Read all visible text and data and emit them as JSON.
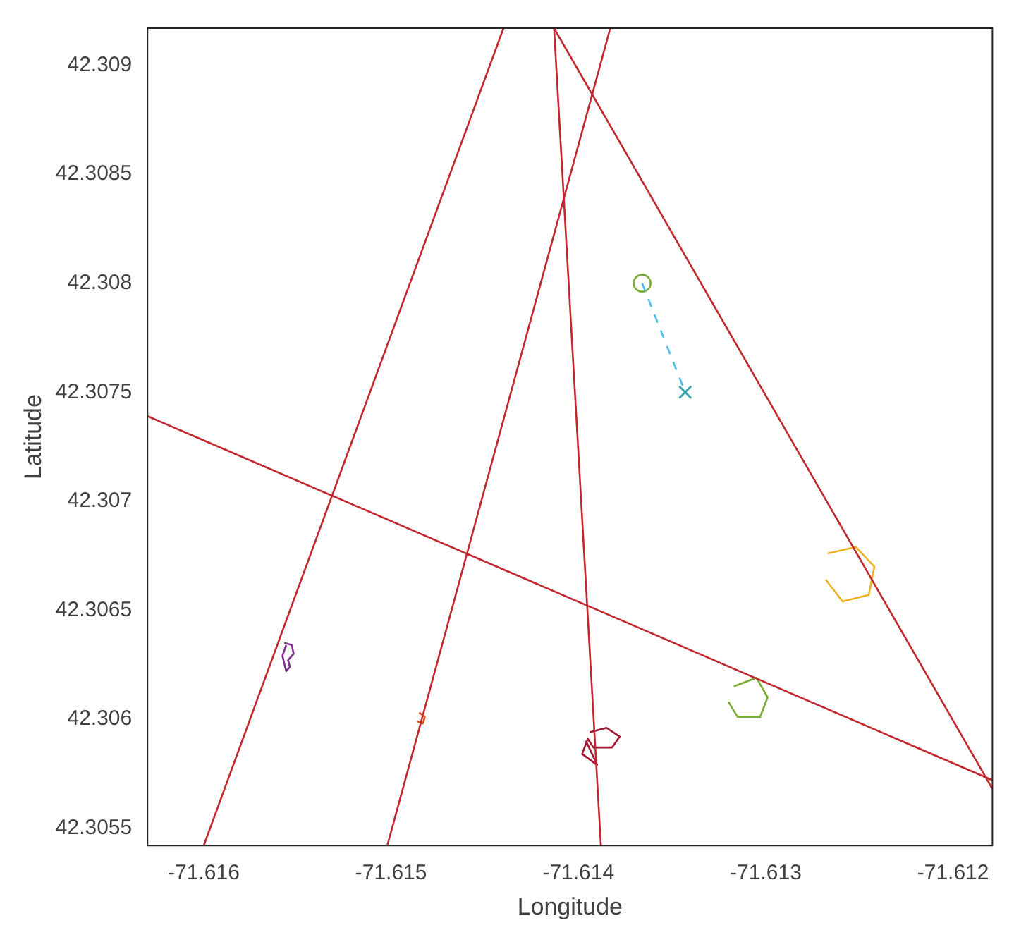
{
  "chart_data": {
    "type": "line",
    "xlabel": "Longitude",
    "ylabel": "Latitude",
    "xlim": [
      -71.6163,
      -71.61179
    ],
    "ylim": [
      42.30542,
      42.30917
    ],
    "xticks": [
      -71.616,
      -71.615,
      -71.614,
      -71.613,
      -71.612
    ],
    "yticks": [
      42.3055,
      42.306,
      42.3065,
      42.307,
      42.3075,
      42.308,
      42.3085,
      42.309
    ],
    "grid": false,
    "legend": false,
    "series": [
      {
        "color": "#c1272d",
        "marker": "none",
        "line_style": "solid",
        "x": [
          -71.616,
          -71.6144
        ],
        "values": [
          42.30542,
          42.30917
        ]
      },
      {
        "color": "#c1272d",
        "marker": "none",
        "line_style": "solid",
        "x": [
          -71.61502,
          -71.61383
        ],
        "values": [
          42.30542,
          42.30917
        ]
      },
      {
        "color": "#c1272d",
        "marker": "none",
        "line_style": "solid",
        "x": [
          -71.61413,
          -71.61388
        ],
        "values": [
          42.30917,
          42.30542
        ]
      },
      {
        "color": "#c1272d",
        "marker": "none",
        "line_style": "solid",
        "x": [
          -71.61413,
          -71.61179
        ],
        "values": [
          42.30917,
          42.30568
        ]
      },
      {
        "color": "#c1272d",
        "marker": "none",
        "line_style": "solid",
        "x": [
          -71.6163,
          -71.61179
        ],
        "values": [
          42.30739,
          42.30572
        ]
      },
      {
        "color": "#7e2f8e",
        "marker": "none",
        "line_style": "solid",
        "x": [
          -71.61557,
          -71.61553,
          -71.61552,
          -71.61555,
          -71.61554,
          -71.61556,
          -71.61558,
          -71.61556
        ],
        "values": [
          42.30635,
          42.30634,
          42.3063,
          42.30627,
          42.30624,
          42.30622,
          42.30629,
          42.30634
        ]
      },
      {
        "color": "#d95319",
        "marker": "none",
        "line_style": "solid",
        "x": [
          -71.61485,
          -71.61482,
          -71.61483,
          -71.61486
        ],
        "values": [
          42.30603,
          42.30601,
          42.30598,
          42.30599
        ]
      },
      {
        "color": "#a2142f",
        "marker": "none",
        "line_style": "solid",
        "x": [
          -71.61394,
          -71.61385,
          -71.61378,
          -71.61382,
          -71.61392,
          -71.61395,
          -71.61398,
          -71.6139,
          -71.61396
        ],
        "values": [
          42.30594,
          42.30596,
          42.30592,
          42.30587,
          42.30587,
          42.30591,
          42.30584,
          42.30579,
          42.3059
        ]
      },
      {
        "color": "#77ac30",
        "marker": "none",
        "line_style": "solid",
        "x": [
          -71.61317,
          -71.61305,
          -71.61299,
          -71.61303,
          -71.61315,
          -71.6132
        ],
        "values": [
          42.30615,
          42.30619,
          42.3061,
          42.30601,
          42.30601,
          42.30608
        ]
      },
      {
        "color": "#edb120",
        "marker": "none",
        "line_style": "solid",
        "x": [
          -71.61267,
          -71.61252,
          -71.61242,
          -71.61245,
          -71.61259,
          -71.61268
        ],
        "values": [
          42.30676,
          42.30679,
          42.3067,
          42.30657,
          42.30654,
          42.30664
        ]
      },
      {
        "color": "#4dbeee",
        "marker": "none",
        "line_style": "dashed",
        "x": [
          -71.61366,
          -71.61343
        ],
        "values": [
          42.308,
          42.3075
        ]
      },
      {
        "type": "scatter",
        "color": "#77ac30",
        "marker": "circle",
        "x": [
          -71.61366
        ],
        "values": [
          42.308
        ]
      },
      {
        "type": "scatter",
        "color": "#2f9fb0",
        "marker": "cross",
        "x": [
          -71.61343
        ],
        "values": [
          42.3075
        ]
      }
    ]
  }
}
